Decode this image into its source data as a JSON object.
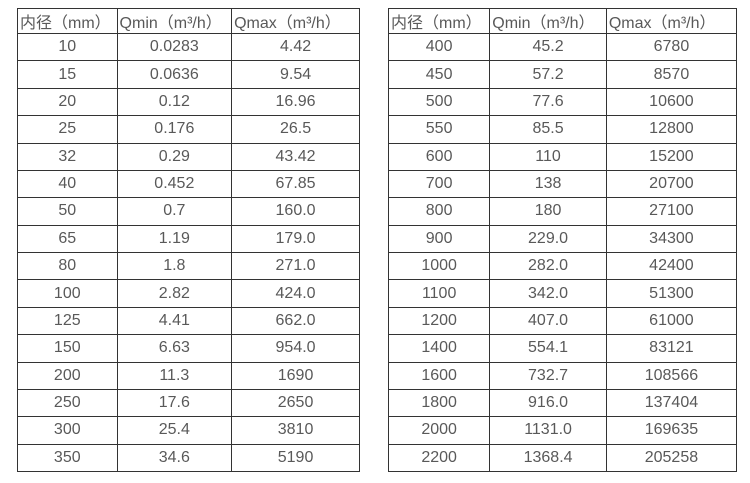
{
  "colors": {
    "text": "#595959",
    "border": "#333333",
    "background": "#ffffff"
  },
  "table_left": {
    "headers": [
      "内径（mm）",
      "Qmin（m³/h）",
      "Qmax（m³/h）"
    ],
    "rows": [
      [
        "10",
        "0.0283",
        "4.42"
      ],
      [
        "15",
        "0.0636",
        "9.54"
      ],
      [
        "20",
        "0.12",
        "16.96"
      ],
      [
        "25",
        "0.176",
        "26.5"
      ],
      [
        "32",
        "0.29",
        "43.42"
      ],
      [
        "40",
        "0.452",
        "67.85"
      ],
      [
        "50",
        "0.7",
        "160.0"
      ],
      [
        "65",
        "1.19",
        "179.0"
      ],
      [
        "80",
        "1.8",
        "271.0"
      ],
      [
        "100",
        "2.82",
        "424.0"
      ],
      [
        "125",
        "4.41",
        "662.0"
      ],
      [
        "150",
        "6.63",
        "954.0"
      ],
      [
        "200",
        "11.3",
        "1690"
      ],
      [
        "250",
        "17.6",
        "2650"
      ],
      [
        "300",
        "25.4",
        "3810"
      ],
      [
        "350",
        "34.6",
        "5190"
      ]
    ]
  },
  "table_right": {
    "headers": [
      "内径（mm）",
      "Qmin（m³/h）",
      "Qmax（m³/h）"
    ],
    "rows": [
      [
        "400",
        "45.2",
        "6780"
      ],
      [
        "450",
        "57.2",
        "8570"
      ],
      [
        "500",
        "77.6",
        "10600"
      ],
      [
        "550",
        "85.5",
        "12800"
      ],
      [
        "600",
        "110",
        "15200"
      ],
      [
        "700",
        "138",
        "20700"
      ],
      [
        "800",
        "180",
        "27100"
      ],
      [
        "900",
        "229.0",
        "34300"
      ],
      [
        "1000",
        "282.0",
        "42400"
      ],
      [
        "1100",
        "342.0",
        "51300"
      ],
      [
        "1200",
        "407.0",
        "61000"
      ],
      [
        "1400",
        "554.1",
        "83121"
      ],
      [
        "1600",
        "732.7",
        "108566"
      ],
      [
        "1800",
        "916.0",
        "137404"
      ],
      [
        "2000",
        "1131.0",
        "169635"
      ],
      [
        "2200",
        "1368.4",
        "205258"
      ]
    ]
  }
}
